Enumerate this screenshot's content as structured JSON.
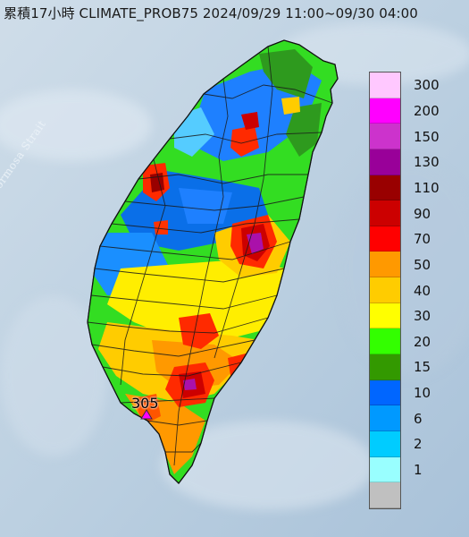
{
  "title": "累積17小時 CLIMATE_PROB75 2024/09/29 11:00~09/30 04:00",
  "strait_label": "Formosa Strait",
  "peak_label": "305",
  "legend": [
    {
      "label": "300",
      "color": "#ffc8ff"
    },
    {
      "label": "200",
      "color": "#ff00ff"
    },
    {
      "label": "150",
      "color": "#cc33cc"
    },
    {
      "label": "130",
      "color": "#990099"
    },
    {
      "label": "110",
      "color": "#990000"
    },
    {
      "label": "90",
      "color": "#cc0000"
    },
    {
      "label": "70",
      "color": "#ff0000"
    },
    {
      "label": "50",
      "color": "#ff9900"
    },
    {
      "label": "40",
      "color": "#ffcc00"
    },
    {
      "label": "30",
      "color": "#ffff00"
    },
    {
      "label": "20",
      "color": "#33ff00"
    },
    {
      "label": "15",
      "color": "#339900"
    },
    {
      "label": "10",
      "color": "#0066ff"
    },
    {
      "label": "6",
      "color": "#0099ff"
    },
    {
      "label": "2",
      "color": "#00ccff"
    },
    {
      "label": "1",
      "color": "#99ffff"
    },
    {
      "label": "",
      "color": "#c0c0c0"
    }
  ]
}
